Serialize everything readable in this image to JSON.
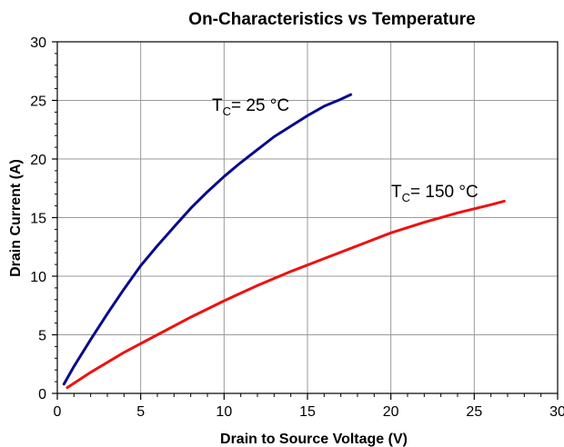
{
  "chart_data": {
    "type": "line",
    "title": "On-Characteristics vs Temperature",
    "xlabel": "Drain to Source Voltage (V)",
    "ylabel": "Drain Current (A)",
    "xlim": [
      0,
      30
    ],
    "ylim": [
      0,
      30
    ],
    "x_ticks": [
      "0",
      "5",
      "10",
      "15",
      "20",
      "25",
      "30"
    ],
    "y_ticks": [
      "0",
      "5",
      "10",
      "15",
      "20",
      "25",
      "30"
    ],
    "grid": true,
    "series": [
      {
        "name": "TC= 25 °C",
        "color": "#0a0a8c",
        "x": [
          0.4,
          1,
          2,
          3,
          4,
          5,
          6,
          7,
          8,
          9,
          10,
          11,
          12,
          13,
          14,
          15,
          16,
          17,
          17.6
        ],
        "y": [
          0.8,
          2.3,
          4.6,
          6.8,
          8.9,
          10.9,
          12.6,
          14.2,
          15.8,
          17.2,
          18.5,
          19.7,
          20.8,
          21.9,
          22.8,
          23.7,
          24.5,
          25.1,
          25.5
        ]
      },
      {
        "name": "TC= 150 °C",
        "color": "#ee1111",
        "x": [
          0.6,
          2,
          4,
          6,
          8,
          10,
          12,
          14,
          16,
          18,
          20,
          22,
          24,
          26,
          26.8
        ],
        "y": [
          0.5,
          1.8,
          3.5,
          5.0,
          6.5,
          7.9,
          9.2,
          10.4,
          11.5,
          12.6,
          13.7,
          14.6,
          15.4,
          16.1,
          16.4
        ]
      }
    ],
    "annotations": [
      {
        "text_main": "T",
        "text_sub": "C",
        "text_rest": "= 25 °C",
        "series": 0
      },
      {
        "text_main": "T",
        "text_sub": "C",
        "text_rest": "= 150 °C",
        "series": 1
      }
    ]
  }
}
